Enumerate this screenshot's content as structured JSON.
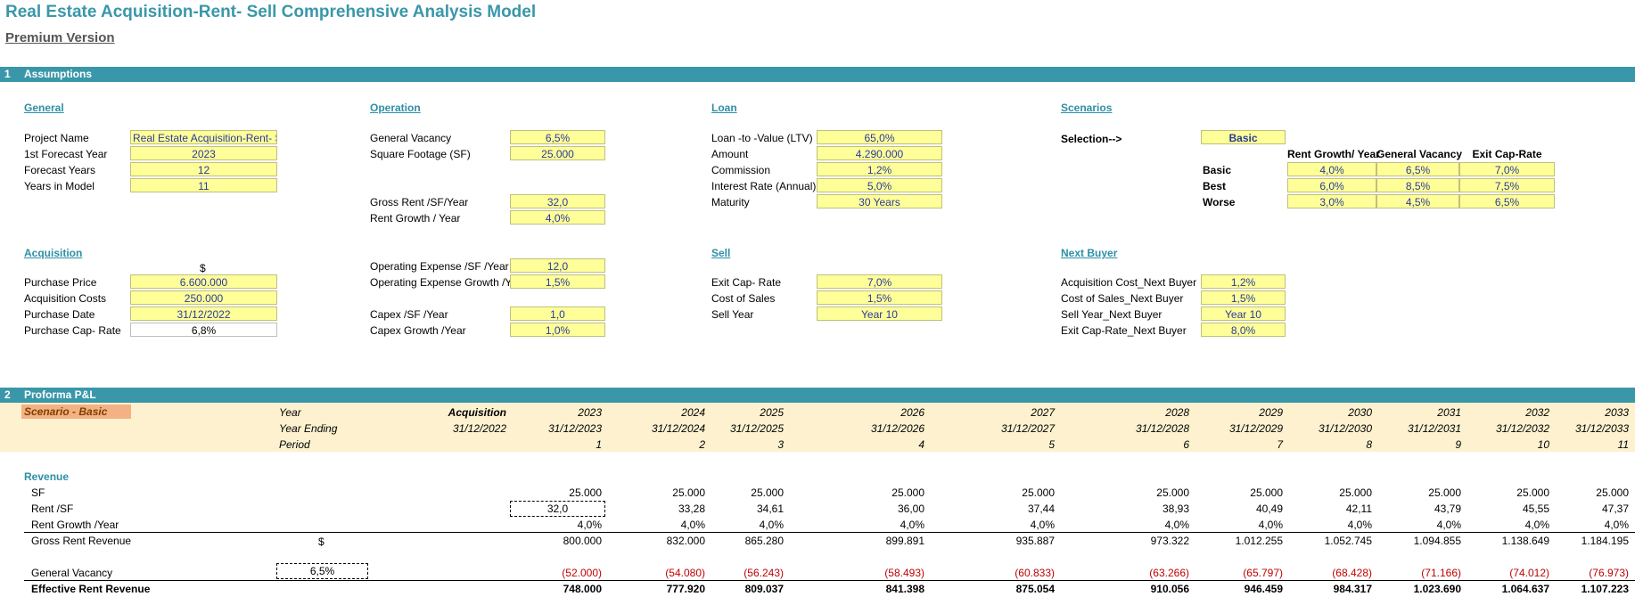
{
  "title": "Real Estate Acquisition-Rent- Sell Comprehensive Analysis Model",
  "subtitle": "Premium Version",
  "section1": {
    "num": "1",
    "label": "Assumptions"
  },
  "general": {
    "heading": "General",
    "rows": [
      {
        "label": "Project Name",
        "value": "Real Estate Acquisition-Rent- Sell"
      },
      {
        "label": "1st Forecast Year",
        "value": "2023"
      },
      {
        "label": "Forecast Years",
        "value": "12"
      },
      {
        "label": "Years in Model",
        "value": "11"
      }
    ]
  },
  "operation": {
    "heading": "Operation",
    "rows": [
      {
        "label": "General Vacancy",
        "value": "6,5%"
      },
      {
        "label": "Square Footage (SF)",
        "value": "25.000"
      },
      {
        "label": "Gross Rent /SF/Year",
        "value": "32,0"
      },
      {
        "label": "Rent Growth / Year",
        "value": "4,0%"
      },
      {
        "label": "Operating Expense /SF /Year",
        "value": "12,0"
      },
      {
        "label": "Operating Expense Growth  /Ye",
        "value": "1,5%"
      },
      {
        "label": "Capex /SF /Year",
        "value": "1,0"
      },
      {
        "label": "Capex Growth  /Year",
        "value": "1,0%"
      }
    ]
  },
  "loan": {
    "heading": "Loan",
    "rows": [
      {
        "label": "Loan -to -Value (LTV)",
        "value": "65,0%"
      },
      {
        "label": "Amount",
        "value": "4.290.000"
      },
      {
        "label": "Commission",
        "value": "1,2%"
      },
      {
        "label": "Interest Rate (Annual)",
        "value": "5,0%"
      },
      {
        "label": "Maturity",
        "value": "30 Years"
      }
    ]
  },
  "scenarios": {
    "heading": "Scenarios",
    "selection_label": "Selection-->",
    "selection_value": "Basic",
    "columns": [
      "Rent Growth/ Year",
      "General Vacancy",
      "Exit Cap-Rate"
    ],
    "rows": [
      {
        "name": "Basic",
        "values": [
          "4,0%",
          "6,5%",
          "7,0%"
        ]
      },
      {
        "name": "Best",
        "values": [
          "6,0%",
          "8,5%",
          "7,5%"
        ]
      },
      {
        "name": "Worse",
        "values": [
          "3,0%",
          "4,5%",
          "6,5%"
        ]
      }
    ]
  },
  "acquisition": {
    "heading": "Acquisition",
    "currency": "$",
    "rows": [
      {
        "label": "Purchase Price",
        "value": "6.600.000"
      },
      {
        "label": "Acquisition Costs",
        "value": "250.000"
      },
      {
        "label": "Purchase Date",
        "value": "31/12/2022"
      },
      {
        "label": "Purchase Cap- Rate",
        "value": "6,8%"
      }
    ]
  },
  "sell": {
    "heading": "Sell",
    "rows": [
      {
        "label": "Exit Cap- Rate",
        "value": "7,0%"
      },
      {
        "label": "Cost of Sales",
        "value": "1,5%"
      },
      {
        "label": "Sell Year",
        "value": "Year 10"
      }
    ]
  },
  "next_buyer": {
    "heading": "Next Buyer",
    "rows": [
      {
        "label": "Acquisition Cost_Next Buyer",
        "value": "1,2%"
      },
      {
        "label": "Cost of Sales_Next Buyer",
        "value": "1,5%"
      },
      {
        "label": "Sell Year_Next Buyer",
        "value": "Year 10"
      },
      {
        "label": "Exit Cap-Rate_Next Buyer",
        "value": "8,0%"
      }
    ]
  },
  "section2": {
    "num": "2",
    "label": "Proforma P&L"
  },
  "pnl": {
    "scenario_tag": "Scenario - Basic",
    "year_label": "Year",
    "year_ending_label": "Year Ending",
    "period_label": "Period",
    "acq_head": "Acquisition",
    "acq_date": "31/12/2022",
    "years": [
      "2023",
      "2024",
      "2025",
      "2026",
      "2027",
      "2028",
      "2029",
      "2030",
      "2031",
      "2032",
      "2033"
    ],
    "endings": [
      "31/12/2023",
      "31/12/2024",
      "31/12/2025",
      "31/12/2026",
      "31/12/2027",
      "31/12/2028",
      "31/12/2029",
      "31/12/2030",
      "31/12/2031",
      "31/12/2032",
      "31/12/2033"
    ],
    "periods": [
      "1",
      "2",
      "3",
      "4",
      "5",
      "6",
      "7",
      "8",
      "9",
      "10",
      "11"
    ],
    "revenue_label": "Revenue",
    "sf_label": "SF",
    "sf": [
      "25.000",
      "25.000",
      "25.000",
      "25.000",
      "25.000",
      "25.000",
      "25.000",
      "25.000",
      "25.000",
      "25.000",
      "25.000"
    ],
    "rent_sf_label": "Rent /SF",
    "rent_sf": [
      "32,0",
      "33,28",
      "34,61",
      "36,00",
      "37,44",
      "38,93",
      "40,49",
      "42,11",
      "43,79",
      "45,55",
      "47,37"
    ],
    "rent_growth_label": "Rent Growth /Year",
    "rent_growth": [
      "4,0%",
      "4,0%",
      "4,0%",
      "4,0%",
      "4,0%",
      "4,0%",
      "4,0%",
      "4,0%",
      "4,0%",
      "4,0%",
      "4,0%"
    ],
    "gross_label": "Gross Rent Revenue",
    "gross_currency": "$",
    "gross": [
      "800.000",
      "832.000",
      "865.280",
      "899.891",
      "935.887",
      "973.322",
      "1.012.255",
      "1.052.745",
      "1.094.855",
      "1.138.649",
      "1.184.195"
    ],
    "vacancy_label": "General Vacancy",
    "vacancy_rate": "6,5%",
    "vacancy": [
      "(52.000)",
      "(54.080)",
      "(56.243)",
      "(58.493)",
      "(60.833)",
      "(63.266)",
      "(65.797)",
      "(68.428)",
      "(71.166)",
      "(74.012)",
      "(76.973)"
    ],
    "effective_label": "Effective Rent Revenue",
    "effective": [
      "748.000",
      "777.920",
      "809.037",
      "841.398",
      "875.054",
      "910.056",
      "946.459",
      "984.317",
      "1.023.690",
      "1.064.637",
      "1.107.223"
    ]
  }
}
